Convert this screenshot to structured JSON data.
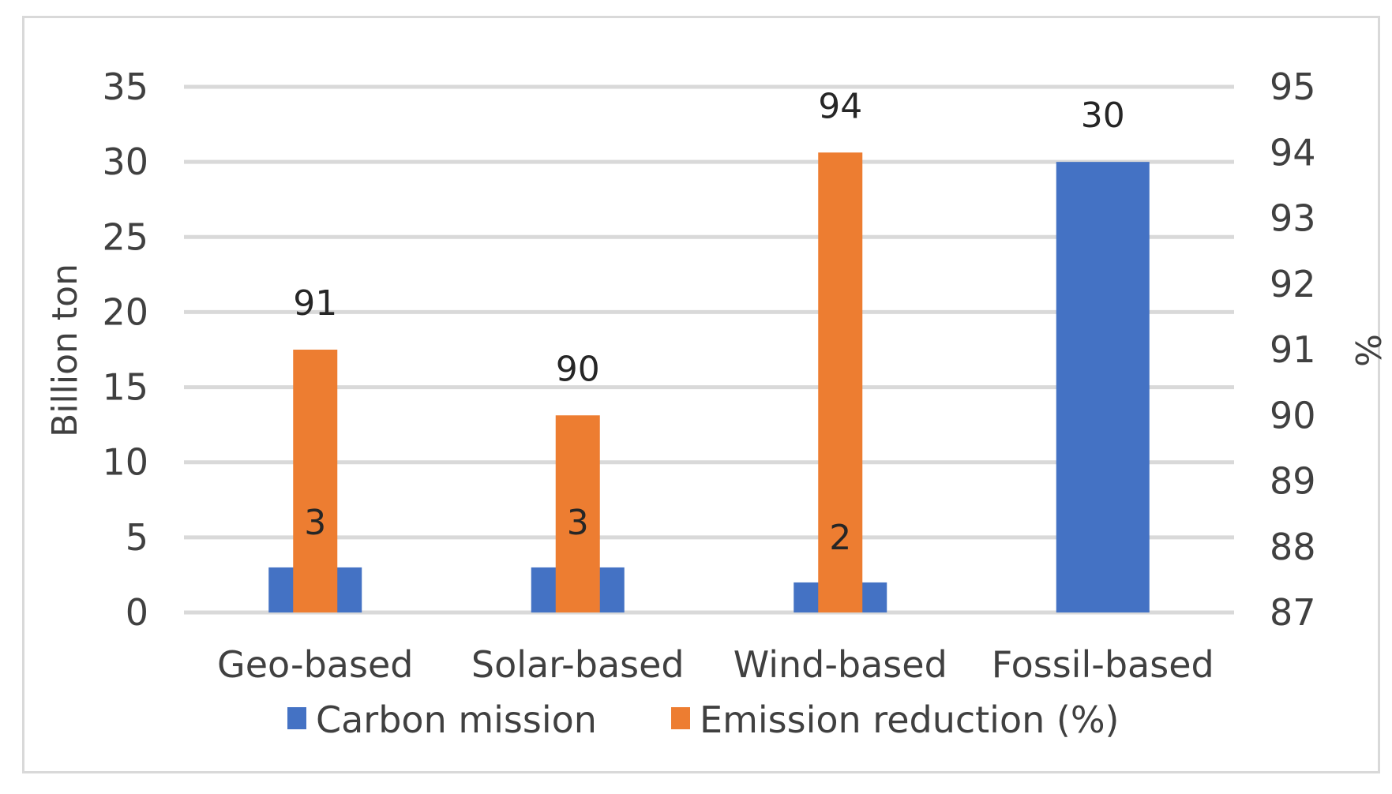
{
  "chart_data": {
    "type": "bar",
    "categories": [
      "Geo-based",
      "Solar-based",
      "Wind-based",
      "Fossil-based"
    ],
    "series": [
      {
        "name": "Carbon mission",
        "axis": "left",
        "color": "#4472c4",
        "values": [
          3,
          3,
          2,
          30
        ],
        "labels": [
          "3",
          "3",
          "2",
          "30"
        ]
      },
      {
        "name": "Emission reduction (%)",
        "axis": "right",
        "color": "#ed7d31",
        "values": [
          91,
          90,
          94,
          null
        ],
        "labels": [
          "91",
          "90",
          "94",
          ""
        ]
      }
    ],
    "ylabel": "Billion ton",
    "y2label": "%",
    "ylim": [
      0,
      35
    ],
    "y2lim": [
      87,
      95
    ],
    "yticks": [
      "0",
      "5",
      "10",
      "15",
      "20",
      "25",
      "30",
      "35"
    ],
    "y2ticks": [
      "87",
      "88",
      "89",
      "90",
      "91",
      "92",
      "93",
      "94",
      "95"
    ],
    "grid": true,
    "legend_position": "bottom"
  },
  "colors": {
    "grid": "#d9d9d9",
    "text": "#404040"
  }
}
